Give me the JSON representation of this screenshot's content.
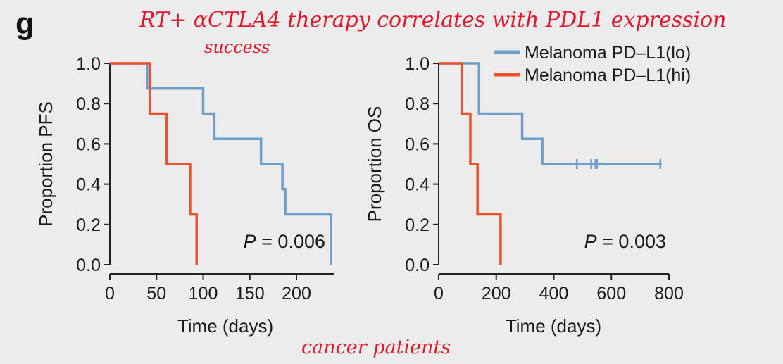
{
  "panel_label": "g",
  "annotations": {
    "title_note_line1": "RT+ αCTLA4 therapy correlates with PDL1 expression",
    "title_note_line2": "success",
    "bottom_note": "cancer patients"
  },
  "colors": {
    "lo": "#6f9fc8",
    "hi": "#e9532b",
    "annotation": "#e0162b",
    "axis": "#222222"
  },
  "legend": [
    {
      "key": "lo",
      "label": "Melanoma PD–L1(lo)"
    },
    {
      "key": "hi",
      "label": "Melanoma PD–L1(hi)"
    }
  ],
  "chart_data": [
    {
      "type": "line",
      "subtype": "kaplan-meier step",
      "title": "",
      "xlabel": "Time (days)",
      "ylabel": "Proportion PFS",
      "xlim": [
        0,
        240
      ],
      "ylim": [
        0,
        1
      ],
      "xticks": [
        0,
        50,
        100,
        150,
        200
      ],
      "yticks": [
        0.0,
        0.2,
        0.4,
        0.6,
        0.8,
        1.0
      ],
      "ytick_labels": [
        "0.0",
        "0.2",
        "0.4",
        "0.6",
        "0.8",
        "1.0"
      ],
      "p_value_label": "P",
      "p_value_text": " = 0.006",
      "series": [
        {
          "name": "Melanoma PD–L1(lo)",
          "key": "lo",
          "steps": [
            [
              0,
              1.0
            ],
            [
              40,
              0.875
            ],
            [
              100,
              0.75
            ],
            [
              112,
              0.625
            ],
            [
              162,
              0.5
            ],
            [
              185,
              0.375
            ],
            [
              188,
              0.25
            ],
            [
              237,
              0.0
            ]
          ],
          "end_x": 237,
          "censored": []
        },
        {
          "name": "Melanoma PD–L1(hi)",
          "key": "hi",
          "steps": [
            [
              0,
              1.0
            ],
            [
              43,
              0.75
            ],
            [
              61,
              0.5
            ],
            [
              86,
              0.25
            ],
            [
              93,
              0.0
            ]
          ],
          "end_x": 93,
          "censored": []
        }
      ]
    },
    {
      "type": "line",
      "subtype": "kaplan-meier step",
      "title": "",
      "xlabel": "Time (days)",
      "ylabel": "Proportion OS",
      "xlim": [
        0,
        800
      ],
      "ylim": [
        0,
        1
      ],
      "xticks": [
        0,
        200,
        400,
        600,
        800
      ],
      "yticks": [
        0.0,
        0.2,
        0.4,
        0.6,
        0.8,
        1.0
      ],
      "ytick_labels": [
        "0.0",
        "0.2",
        "0.4",
        "0.6",
        "0.8",
        "1.0"
      ],
      "p_value_label": "P",
      "p_value_text": " = 0.003",
      "series": [
        {
          "name": "Melanoma PD–L1(lo)",
          "key": "lo",
          "steps": [
            [
              0,
              1.0
            ],
            [
              140,
              0.75
            ],
            [
              290,
              0.625
            ],
            [
              360,
              0.5
            ]
          ],
          "end_x": 775,
          "censored": [
            480,
            530,
            545,
            550,
            770
          ]
        },
        {
          "name": "Melanoma PD–L1(hi)",
          "key": "hi",
          "steps": [
            [
              0,
              1.0
            ],
            [
              80,
              0.75
            ],
            [
              110,
              0.5
            ],
            [
              135,
              0.25
            ],
            [
              215,
              0.0
            ]
          ],
          "end_x": 215,
          "censored": []
        }
      ]
    }
  ]
}
